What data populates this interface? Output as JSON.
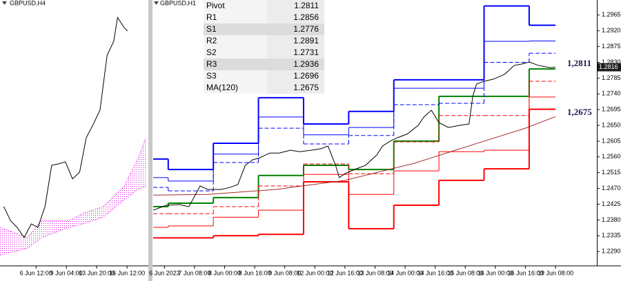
{
  "chart_data": [
    {
      "type": "line",
      "title": "GBPUSD,H4",
      "xlim": [
        -64,
        249
      ],
      "ylim": [
        1.232,
        1.2867
      ],
      "xticks": [
        {
          "value": 12,
          "label": "6 Jun 12:00"
        },
        {
          "value": 76,
          "label": "9 Jun 04:00"
        },
        {
          "value": 140,
          "label": "13 Jun 20:00"
        },
        {
          "value": 204,
          "label": "16 Jun 12:00"
        }
      ],
      "series": [
        {
          "type": "band",
          "color": "#e000e0",
          "x": [
            -64,
            -6,
            24,
            82,
            111,
            154,
            198,
            227,
            244
          ],
          "values": [
            1.2398,
            1.2377,
            1.2412,
            1.2412,
            1.2427,
            1.2441,
            1.2483,
            1.254,
            1.2583
          ],
          "lower": [
            1.2341,
            1.2355,
            1.2377,
            1.2398,
            1.2405,
            1.2419,
            1.2455,
            1.2476,
            1.2483
          ]
        },
        {
          "type": "line",
          "color": "#000000",
          "x": [
            -56,
            -42,
            -28,
            -13,
            2,
            16,
            31,
            45,
            60,
            74,
            89,
            104,
            118,
            133,
            147,
            162,
            176,
            184,
            198,
            205
          ],
          "values": [
            1.2441,
            1.2412,
            1.2398,
            1.2377,
            1.2405,
            1.2398,
            1.2441,
            1.2526,
            1.2529,
            1.2533,
            1.2498,
            1.2512,
            1.2583,
            1.2611,
            1.264,
            1.2753,
            1.2782,
            1.2831,
            1.281,
            1.2803
          ]
        }
      ]
    },
    {
      "type": "line",
      "title": "GBPUSD,H1",
      "xlim": [
        10,
        246
      ],
      "ylim": [
        1.2251,
        1.3002
      ],
      "xticks": [
        {
          "value": 16,
          "label": "6 Jun 2023"
        },
        {
          "value": 32,
          "label": "7 Jun 08:00"
        },
        {
          "value": 48,
          "label": "8 Jun 00:00"
        },
        {
          "value": 64,
          "label": "8 Jun 16:00"
        },
        {
          "value": 80,
          "label": "9 Jun 08:00"
        },
        {
          "value": 96,
          "label": "12 Jun 00:00"
        },
        {
          "value": 112,
          "label": "12 Jun 16:00"
        },
        {
          "value": 128,
          "label": "13 Jun 08:00"
        },
        {
          "value": 144,
          "label": "14 Jun 00:00"
        },
        {
          "value": 160,
          "label": "14 Jun 16:00"
        },
        {
          "value": 176,
          "label": "15 Jun 08:00"
        },
        {
          "value": 192,
          "label": "16 Jun 00:00"
        },
        {
          "value": 208,
          "label": "16 Jun 16:00"
        },
        {
          "value": 224,
          "label": "19 Jun 08:00"
        }
      ],
      "yticks": [
        {
          "value": 1.229,
          "label": "1.2290"
        },
        1.2335,
        {
          "value": 1.238,
          "label": "1.2380"
        },
        1.2425,
        {
          "value": 1.247,
          "label": "1.2470"
        },
        1.2515,
        {
          "value": 1.256,
          "label": "1.2560"
        },
        1.2605,
        {
          "value": 1.265,
          "label": "1.2650"
        },
        1.2695,
        {
          "value": 1.274,
          "label": "1.2740"
        },
        1.2785,
        {
          "value": 1.283,
          "label": "1.2830"
        },
        1.2875,
        {
          "value": 1.292,
          "label": "1.2920"
        },
        1.2965
      ],
      "x": [
        10,
        18,
        42,
        66,
        90,
        114,
        138,
        162,
        186,
        210
      ],
      "x_end": 224,
      "series": [
        {
          "name": "Pivot",
          "type": "step",
          "color": "#008000",
          "width": 2,
          "dash": false,
          "values": [
            1.2418,
            1.2428,
            1.2444,
            1.2507,
            1.2536,
            1.2524,
            1.2605,
            1.2733,
            1.2733,
            1.2811
          ]
        },
        {
          "name": "R1",
          "type": "step",
          "color": "#0000ff",
          "width": 1,
          "dash": true,
          "values": [
            1.2473,
            1.2463,
            1.2544,
            1.2642,
            1.2597,
            1.2621,
            1.2709,
            1.2713,
            1.283,
            1.2856
          ]
        },
        {
          "name": "S1",
          "type": "step",
          "color": "#ff0000",
          "width": 1,
          "dash": true,
          "values": [
            1.2398,
            1.2398,
            1.2418,
            1.2477,
            1.254,
            1.2512,
            1.2603,
            1.2678,
            1.2678,
            1.2776
          ]
        },
        {
          "name": "R2",
          "type": "step",
          "color": "#0000ff",
          "width": 1,
          "dash": false,
          "values": [
            1.2501,
            1.2491,
            1.2568,
            1.2674,
            1.2623,
            1.2644,
            1.2756,
            1.2756,
            1.289,
            1.2891
          ]
        },
        {
          "name": "S2",
          "type": "step",
          "color": "#ff0000",
          "width": 1,
          "dash": false,
          "values": [
            1.2359,
            1.2363,
            1.2388,
            1.2408,
            1.251,
            1.2453,
            1.252,
            1.2575,
            1.2579,
            1.2731
          ]
        },
        {
          "name": "R3",
          "type": "step",
          "color": "#0000ff",
          "width": 2,
          "dash": false,
          "values": [
            1.2554,
            1.2524,
            1.2599,
            1.2729,
            1.2654,
            1.269,
            1.278,
            1.278,
            1.2991,
            1.2936
          ]
        },
        {
          "name": "S3",
          "type": "step",
          "color": "#ff0000",
          "width": 2,
          "dash": false,
          "values": [
            1.2329,
            1.2329,
            1.2335,
            1.2339,
            1.2489,
            1.2355,
            1.2422,
            1.2493,
            1.2526,
            1.2696
          ]
        },
        {
          "name": "MA(120)",
          "type": "line",
          "color": "#a52a2a",
          "width": 1,
          "dash": false,
          "x": [
            10,
            39,
            75,
            112,
            149,
            186,
            208,
            224
          ],
          "values": [
            1.2451,
            1.2453,
            1.2467,
            1.2493,
            1.2542,
            1.2605,
            1.2642,
            1.2675
          ]
        },
        {
          "type": "line",
          "color": "#000000",
          "width": 1,
          "dash": false,
          "x": [
            10,
            17,
            24,
            29,
            35,
            39,
            46,
            51,
            55,
            59,
            63,
            66,
            72,
            77,
            83,
            88,
            94,
            99,
            103,
            107,
            109,
            112,
            118,
            123,
            129,
            132,
            136,
            140,
            145,
            151,
            154,
            158,
            162,
            167,
            173,
            178,
            180,
            182,
            186,
            191,
            197,
            202,
            206,
            210,
            215,
            221,
            224
          ],
          "values": [
            1.2408,
            1.2422,
            1.2424,
            1.2418,
            1.2477,
            1.2467,
            1.2467,
            1.2473,
            1.2481,
            1.2536,
            1.2552,
            1.2556,
            1.2571,
            1.2571,
            1.2579,
            1.2575,
            1.2579,
            1.2583,
            1.2591,
            1.2536,
            1.2501,
            1.2512,
            1.2526,
            1.2536,
            1.2566,
            1.2591,
            1.2605,
            1.2615,
            1.2625,
            1.265,
            1.2674,
            1.2693,
            1.2658,
            1.2644,
            1.265,
            1.2654,
            1.2733,
            1.2768,
            1.2776,
            1.2782,
            1.2796,
            1.2821,
            1.2825,
            1.2831,
            1.2821,
            1.2815,
            1.2816
          ]
        }
      ],
      "annotations": [
        "1,2811",
        "1,2675"
      ]
    }
  ]
}
